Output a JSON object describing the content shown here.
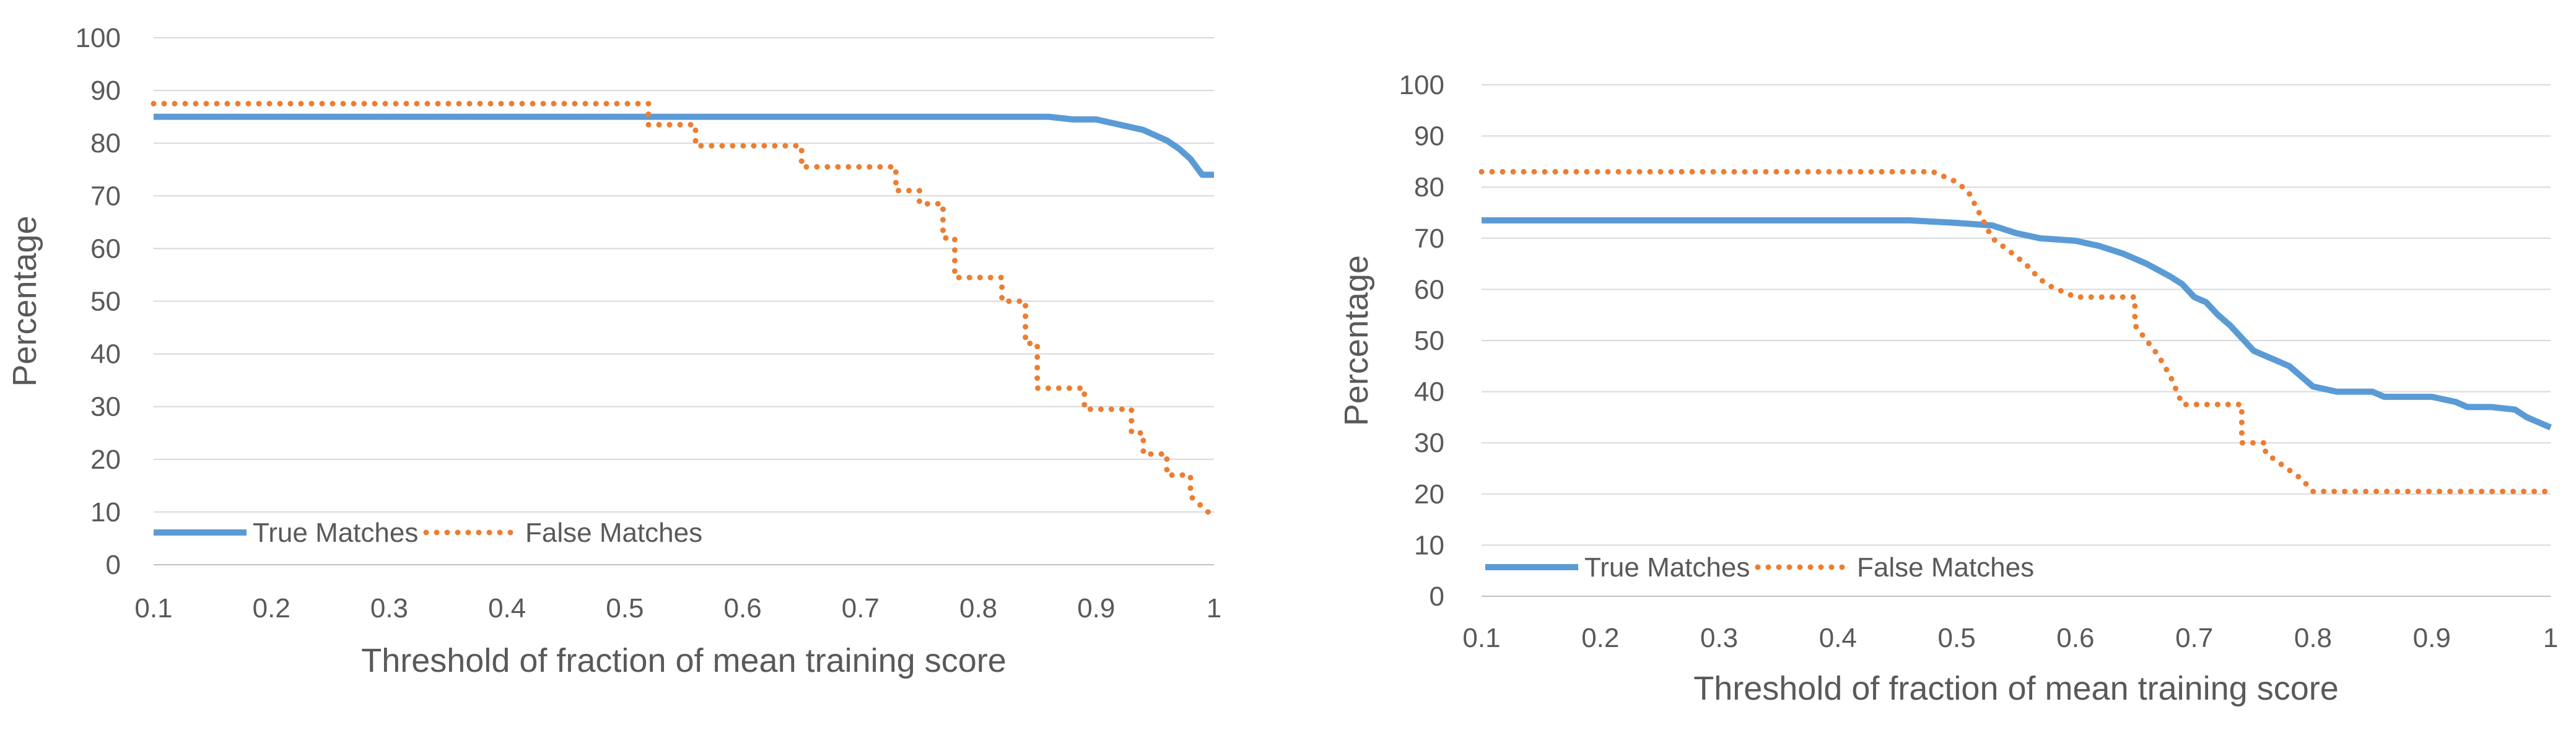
{
  "chart_data": [
    {
      "type": "line",
      "xlabel": "Threshold of fraction of mean training score",
      "ylabel": "Percentage",
      "xlim": [
        0.1,
        1
      ],
      "ylim": [
        0,
        100
      ],
      "x_ticks": [
        "0.1",
        "0.2",
        "0.3",
        "0.4",
        "0.5",
        "0.6",
        "0.7",
        "0.8",
        "0.9",
        "1"
      ],
      "y_ticks": [
        "0",
        "10",
        "20",
        "30",
        "40",
        "50",
        "60",
        "70",
        "80",
        "90",
        "100"
      ],
      "grid": "horizontal",
      "legend_position": "bottom-left",
      "series": [
        {
          "name": "True Matches",
          "color": "#5B9BD5",
          "style": "solid",
          "x": [
            0.1,
            0.5,
            0.86,
            0.88,
            0.9,
            0.92,
            0.94,
            0.96,
            0.97,
            0.98,
            0.99,
            1.0
          ],
          "y": [
            85,
            85,
            85,
            84.5,
            84.5,
            83.5,
            82.5,
            80.5,
            79,
            77,
            74,
            74
          ]
        },
        {
          "name": "False Matches",
          "color": "#ED7D31",
          "style": "dotted",
          "x": [
            0.1,
            0.52,
            0.52,
            0.56,
            0.56,
            0.65,
            0.65,
            0.73,
            0.73,
            0.75,
            0.75,
            0.77,
            0.77,
            0.78,
            0.78,
            0.82,
            0.82,
            0.84,
            0.84,
            0.85,
            0.85,
            0.89,
            0.89,
            0.93,
            0.93,
            0.94,
            0.94,
            0.96,
            0.96,
            0.98,
            0.98,
            1.0
          ],
          "y": [
            87.5,
            87.5,
            83.5,
            83.5,
            79.5,
            79.5,
            75.5,
            75.5,
            71,
            71,
            68.5,
            68.5,
            62,
            62,
            54.5,
            54.5,
            50,
            50,
            42,
            42,
            33.5,
            33.5,
            29.5,
            29.5,
            25,
            25,
            21,
            21,
            17,
            17,
            13,
            9
          ]
        }
      ]
    },
    {
      "type": "line",
      "xlabel": "Threshold of fraction of mean training score",
      "ylabel": "Percentage",
      "xlim": [
        0.1,
        1
      ],
      "ylim": [
        0,
        100
      ],
      "x_ticks": [
        "0.1",
        "0.2",
        "0.3",
        "0.4",
        "0.5",
        "0.6",
        "0.7",
        "0.8",
        "0.9",
        "1"
      ],
      "y_ticks": [
        "0",
        "10",
        "20",
        "30",
        "40",
        "50",
        "60",
        "70",
        "80",
        "90",
        "100"
      ],
      "grid": "horizontal",
      "legend_position": "bottom-left",
      "series": [
        {
          "name": "True Matches",
          "color": "#5B9BD5",
          "style": "solid",
          "x": [
            0.1,
            0.46,
            0.5,
            0.53,
            0.55,
            0.57,
            0.6,
            0.62,
            0.64,
            0.66,
            0.68,
            0.69,
            0.7,
            0.71,
            0.72,
            0.73,
            0.74,
            0.75,
            0.76,
            0.78,
            0.79,
            0.8,
            0.82,
            0.85,
            0.86,
            0.9,
            0.92,
            0.93,
            0.95,
            0.97,
            0.98,
            0.99,
            1.0
          ],
          "y": [
            73.5,
            73.5,
            73,
            72.5,
            71,
            70,
            69.5,
            68.5,
            67,
            65,
            62.5,
            61,
            58.5,
            57.5,
            55,
            53,
            50.5,
            48,
            47,
            45,
            43,
            41,
            40,
            40,
            39,
            39,
            38,
            37,
            37,
            36.5,
            35,
            34,
            33
          ]
        },
        {
          "name": "False Matches",
          "color": "#ED7D31",
          "style": "dotted",
          "x": [
            0.1,
            0.48,
            0.5,
            0.51,
            0.53,
            0.55,
            0.56,
            0.57,
            0.58,
            0.6,
            0.6,
            0.65,
            0.65,
            0.67,
            0.68,
            0.69,
            0.69,
            0.74,
            0.74,
            0.76,
            0.76,
            0.79,
            0.8,
            1.0
          ],
          "y": [
            83,
            83,
            81,
            79,
            70,
            66.5,
            64.5,
            62,
            60.5,
            58.5,
            58.5,
            58.5,
            53,
            47,
            43,
            37.5,
            37.5,
            37.5,
            30,
            30,
            28,
            23,
            20.5,
            20.5
          ]
        }
      ]
    }
  ]
}
